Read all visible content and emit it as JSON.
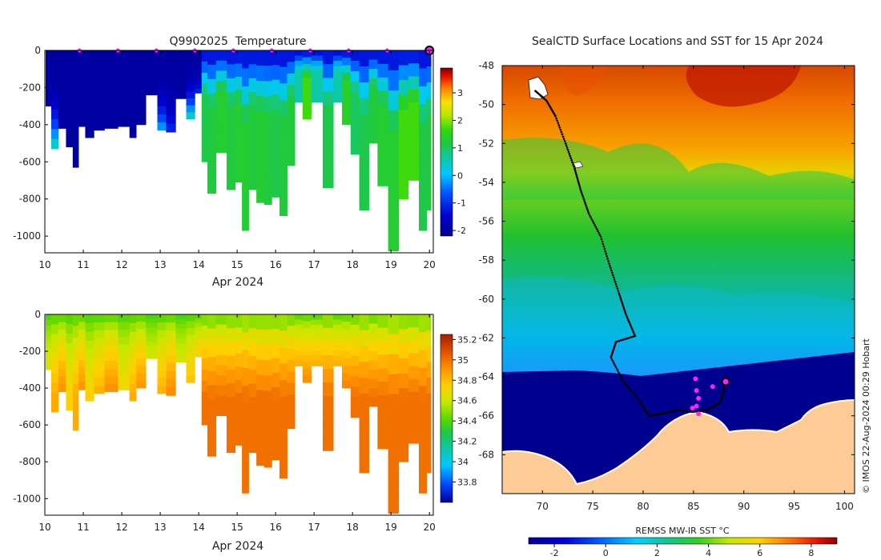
{
  "chart_data": [
    {
      "id": "temperature",
      "type": "heatmap",
      "title": "Q9902025  Temperature",
      "xlabel": "Apr 2024",
      "xlim": [
        10,
        20.1
      ],
      "ylim": [
        -1090,
        0
      ],
      "xticks": [
        10,
        11,
        12,
        13,
        14,
        15,
        16,
        17,
        18,
        19,
        20
      ],
      "yticks": [
        0,
        -200,
        -400,
        -600,
        -800,
        -1000
      ],
      "ytick_labels": [
        "0",
        "-200",
        "-400",
        "-600",
        "-800",
        "-1000"
      ],
      "colorbar": {
        "range": [
          -2.2,
          3.9
        ],
        "ticks": [
          -2,
          -1,
          0,
          1,
          2,
          3
        ]
      },
      "surface_markers_x": [
        10.9,
        11.9,
        12.9,
        13.9,
        14.9,
        15.9,
        16.9,
        17.9,
        18.9
      ],
      "latest_marker_x": 20.0,
      "profiles": [
        {
          "x": 10.08,
          "depth": 300,
          "deep_value": -2.0
        },
        {
          "x": 10.25,
          "depth": 530,
          "deep_value": 0.8
        },
        {
          "x": 10.45,
          "depth": 420,
          "deep_value": -2.0
        },
        {
          "x": 10.65,
          "depth": 520,
          "deep_value": -2.0
        },
        {
          "x": 10.8,
          "depth": 630,
          "deep_value": -2.0
        },
        {
          "x": 10.95,
          "depth": 410,
          "deep_value": -2.0
        },
        {
          "x": 11.15,
          "depth": 470,
          "deep_value": -2.0
        },
        {
          "x": 11.4,
          "depth": 430,
          "deep_value": -2.0
        },
        {
          "x": 11.7,
          "depth": 420,
          "deep_value": -2.0
        },
        {
          "x": 12.1,
          "depth": 410,
          "deep_value": -2.0
        },
        {
          "x": 12.3,
          "depth": 470,
          "deep_value": -2.0
        },
        {
          "x": 12.45,
          "depth": 400,
          "deep_value": -2.0
        },
        {
          "x": 12.8,
          "depth": 240,
          "deep_value": -2.0
        },
        {
          "x": 13.05,
          "depth": 430,
          "deep_value": 0.0
        },
        {
          "x": 13.25,
          "depth": 440,
          "deep_value": -1.0
        },
        {
          "x": 13.55,
          "depth": 260,
          "deep_value": -2.0
        },
        {
          "x": 13.8,
          "depth": 370,
          "deep_value": 0.8
        },
        {
          "x": 14.0,
          "depth": 230,
          "deep_value": -1.0
        },
        {
          "x": 14.15,
          "depth": 600,
          "deep_value": 1.1
        },
        {
          "x": 14.3,
          "depth": 770,
          "deep_value": 1.2
        },
        {
          "x": 14.6,
          "depth": 550,
          "deep_value": 1.3
        },
        {
          "x": 14.85,
          "depth": 750,
          "deep_value": 1.2
        },
        {
          "x": 15.05,
          "depth": 710,
          "deep_value": 1.3
        },
        {
          "x": 15.2,
          "depth": 970,
          "deep_value": 1.3
        },
        {
          "x": 15.4,
          "depth": 750,
          "deep_value": 1.2
        },
        {
          "x": 15.6,
          "depth": 820,
          "deep_value": 1.3
        },
        {
          "x": 15.8,
          "depth": 830,
          "deep_value": 1.2
        },
        {
          "x": 16.0,
          "depth": 790,
          "deep_value": 1.1
        },
        {
          "x": 16.2,
          "depth": 890,
          "deep_value": 1.2
        },
        {
          "x": 16.4,
          "depth": 620,
          "deep_value": 1.2
        },
        {
          "x": 16.6,
          "depth": 280,
          "deep_value": 0.6
        },
        {
          "x": 16.8,
          "depth": 370,
          "deep_value": 1.7
        },
        {
          "x": 17.05,
          "depth": 280,
          "deep_value": 0.6
        },
        {
          "x": 17.4,
          "depth": 740,
          "deep_value": 1.1
        },
        {
          "x": 17.6,
          "depth": 280,
          "deep_value": 0.6
        },
        {
          "x": 17.85,
          "depth": 400,
          "deep_value": 1.4
        },
        {
          "x": 18.05,
          "depth": 560,
          "deep_value": 1.0
        },
        {
          "x": 18.3,
          "depth": 860,
          "deep_value": 1.1
        },
        {
          "x": 18.55,
          "depth": 500,
          "deep_value": 1.2
        },
        {
          "x": 18.75,
          "depth": 730,
          "deep_value": 1.3
        },
        {
          "x": 19.1,
          "depth": 1080,
          "deep_value": 1.3
        },
        {
          "x": 19.3,
          "depth": 800,
          "deep_value": 1.7
        },
        {
          "x": 19.6,
          "depth": 700,
          "deep_value": 1.7
        },
        {
          "x": 19.85,
          "depth": 970,
          "deep_value": 1.1
        },
        {
          "x": 20.0,
          "depth": 860,
          "deep_value": 1.2
        }
      ]
    },
    {
      "id": "salinity",
      "type": "heatmap",
      "title": "",
      "xlabel": "Apr 2024",
      "xlim": [
        10,
        20.1
      ],
      "ylim": [
        -1090,
        0
      ],
      "xticks": [
        10,
        11,
        12,
        13,
        14,
        15,
        16,
        17,
        18,
        19,
        20
      ],
      "yticks": [
        0,
        -200,
        -400,
        -600,
        -800,
        -1000
      ],
      "ytick_labels": [
        "0",
        "-200",
        "-400",
        "-600",
        "-800",
        "-1000"
      ],
      "colorbar": {
        "range": [
          33.6,
          35.25
        ],
        "ticks": [
          33.8,
          34,
          34.2,
          34.4,
          34.6,
          34.8,
          35,
          35.2
        ]
      },
      "surface_value": 34.3,
      "deep_value": 35.0
    },
    {
      "id": "sst-map",
      "type": "heatmap",
      "title": "SealCTD Surface Locations and SST for 15 Apr 2024",
      "xlim": [
        66,
        101
      ],
      "ylim": [
        -70,
        -48
      ],
      "xticks": [
        70,
        75,
        80,
        85,
        90,
        95,
        100
      ],
      "yticks": [
        -48,
        -50,
        -52,
        -54,
        -56,
        -58,
        -60,
        -62,
        -64,
        -66,
        -68
      ],
      "ytick_labels": [
        "-48",
        "-50",
        "-52",
        "-54",
        "-56",
        "-58",
        "-60",
        "-62",
        "-64",
        "-66",
        "-68"
      ],
      "colorbar": {
        "label": "REMSS MW-IR SST °C",
        "range": [
          -3,
          9
        ],
        "ticks": [
          -2,
          0,
          2,
          4,
          6,
          8
        ]
      },
      "credit": "© IMOS 22-Aug-2024 00:29 Hobart",
      "track": [
        [
          69.3,
          -49.3
        ],
        [
          70.4,
          -49.8
        ],
        [
          71.3,
          -50.6
        ],
        [
          72.3,
          -52.0
        ],
        [
          73.2,
          -53.3
        ],
        [
          73.8,
          -54.4
        ],
        [
          74.6,
          -55.6
        ],
        [
          75.8,
          -56.8
        ],
        [
          76.7,
          -58.3
        ],
        [
          77.6,
          -59.7
        ],
        [
          78.3,
          -60.8
        ],
        [
          79.2,
          -61.9
        ],
        [
          77.3,
          -62.2
        ],
        [
          76.8,
          -63.0
        ],
        [
          78.0,
          -64.2
        ],
        [
          79.6,
          -65.2
        ],
        [
          80.6,
          -66.0
        ],
        [
          81.8,
          -65.9
        ],
        [
          83.4,
          -65.7
        ],
        [
          84.9,
          -65.8
        ],
        [
          86.4,
          -65.7
        ],
        [
          87.7,
          -65.3
        ],
        [
          88.2,
          -64.3
        ]
      ],
      "recent_points": [
        [
          85.2,
          -64.1
        ],
        [
          85.3,
          -64.7
        ],
        [
          85.5,
          -65.1
        ],
        [
          85.3,
          -65.5
        ],
        [
          84.9,
          -65.6
        ],
        [
          85.5,
          -65.9
        ],
        [
          86.9,
          -64.5
        ]
      ],
      "latest_point": [
        88.2,
        -64.25
      ]
    }
  ]
}
